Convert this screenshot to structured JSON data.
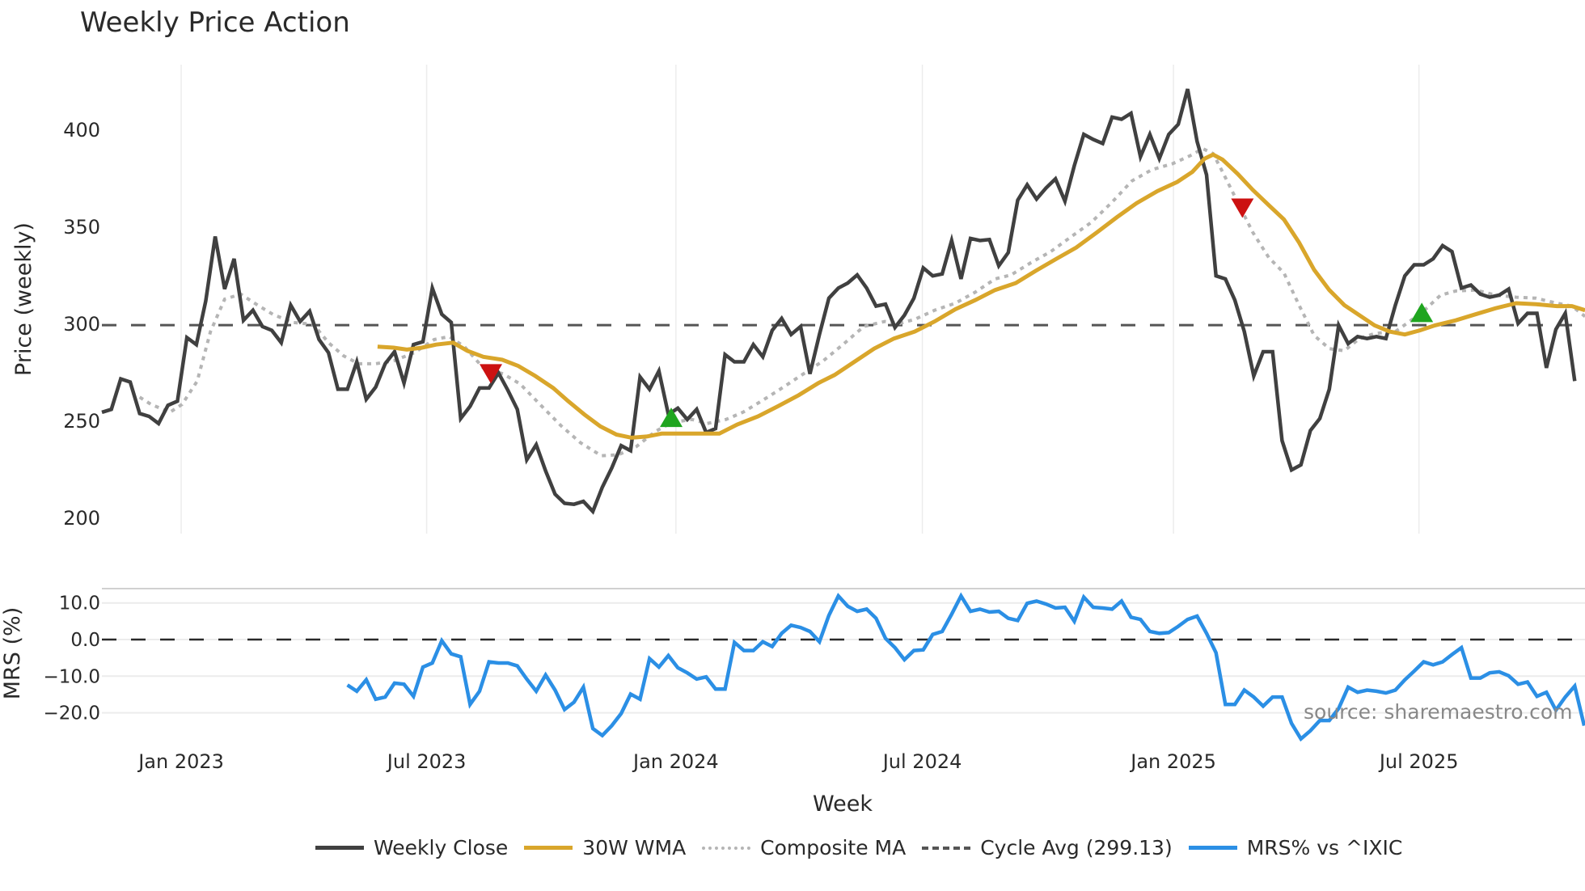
{
  "chart_data": {
    "type": "line",
    "title": "Weekly Price Action",
    "xlabel": "Week",
    "source": "source: sharemaestro.com",
    "x_ticks": [
      {
        "label": "Jan 2023",
        "week": 8.4
      },
      {
        "label": "Jul 2023",
        "week": 34.4
      },
      {
        "label": "Jan 2024",
        "week": 60.8
      },
      {
        "label": "Jul 2024",
        "week": 86.9
      },
      {
        "label": "Jan 2025",
        "week": 113.5
      },
      {
        "label": "Jul 2025",
        "week": 139.5
      }
    ],
    "panels": {
      "price": {
        "ylabel": "Price (weekly)",
        "y_ticks": [
          200,
          250,
          300,
          350,
          400
        ],
        "ylim": [
          188,
          435
        ],
        "cycle_avg": 299.13
      },
      "mrs": {
        "ylabel": "MRS (%)",
        "y_ticks": [
          "10.0",
          "0.0",
          "−10.0",
          "−20.0"
        ],
        "y_tick_values": [
          10,
          0,
          -10,
          -20
        ],
        "ylim": [
          -30,
          14
        ]
      }
    },
    "legend": [
      {
        "name": "Weekly Close",
        "color": "#404040",
        "style": "solid"
      },
      {
        "name": "30W WMA",
        "color": "#d9a62b",
        "style": "solid"
      },
      {
        "name": "Composite MA",
        "color": "#b5b5b5",
        "style": "dotted"
      },
      {
        "name": "Cycle Avg (299.13)",
        "color": "#555555",
        "style": "dashed"
      },
      {
        "name": "MRS% vs ^IXIC",
        "color": "#2b8fe5",
        "style": "solid"
      }
    ],
    "series": [
      {
        "name": "Weekly Close",
        "start_week": 0,
        "values": [
          254.2,
          255.7,
          271.4,
          269.8,
          253.6,
          252.1,
          248.4,
          257.8,
          259.9,
          292.7,
          289.1,
          311.5,
          344.8,
          317.7,
          333.3,
          301.6,
          306.8,
          298.4,
          296.4,
          290.1,
          309.4,
          301.0,
          306.3,
          291.7,
          284.9,
          266.1,
          266.1,
          280.2,
          260.9,
          267.2,
          279.2,
          285.4,
          269.3,
          289.1,
          290.6,
          318.2,
          304.7,
          300.5,
          251.0,
          257.3,
          266.7,
          266.7,
          274.5,
          265.6,
          255.7,
          229.7,
          237.5,
          224.0,
          212.0,
          207.3,
          206.8,
          208.3,
          203.1,
          215.6,
          225.5,
          237.0,
          234.4,
          272.4,
          266.1,
          275.5,
          253.1,
          256.3,
          250.5,
          255.7,
          243.8,
          245.8,
          283.9,
          280.2,
          280.2,
          289.1,
          282.8,
          296.4,
          302.6,
          294.3,
          298.4,
          274.0,
          294.3,
          313.0,
          318.2,
          320.8,
          325.0,
          318.2,
          308.9,
          309.9,
          297.9,
          304.2,
          313.0,
          328.6,
          324.5,
          325.5,
          342.7,
          322.9,
          343.8,
          342.7,
          343.2,
          329.7,
          336.5,
          363.5,
          371.4,
          364.1,
          369.8,
          374.5,
          363.0,
          381.3,
          397.4,
          394.8,
          392.7,
          406.3,
          405.2,
          408.3,
          385.9,
          397.4,
          384.9,
          397.4,
          402.6,
          420.8,
          393.8,
          376.6,
          324.5,
          322.9,
          312.0,
          295.8,
          272.9,
          285.4,
          285.4,
          239.6,
          224.5,
          227.1,
          244.8,
          251.0,
          266.1,
          299.0,
          289.6,
          293.2,
          292.2,
          293.2,
          292.2,
          309.4,
          324.5,
          330.2,
          330.2,
          333.3,
          340.1,
          337.0,
          318.2,
          319.8,
          315.1,
          313.5,
          314.6,
          317.7,
          300.0,
          305.2,
          305.2,
          277.1,
          296.9,
          305.2,
          270.3
        ]
      },
      {
        "name": "30W WMA",
        "points": [
          [
            29.2,
            288.0
          ],
          [
            30.9,
            287.5
          ],
          [
            32.3,
            286.5
          ],
          [
            33.9,
            287.5
          ],
          [
            35.4,
            289.1
          ],
          [
            37.2,
            290.1
          ],
          [
            38.7,
            285.9
          ],
          [
            40.4,
            282.8
          ],
          [
            42.4,
            281.3
          ],
          [
            44.1,
            278.1
          ],
          [
            45.9,
            272.9
          ],
          [
            47.8,
            266.7
          ],
          [
            49.4,
            259.9
          ],
          [
            51.1,
            253.1
          ],
          [
            52.8,
            246.9
          ],
          [
            54.5,
            242.7
          ],
          [
            56.1,
            241.1
          ],
          [
            57.7,
            241.7
          ],
          [
            59.3,
            243.2
          ],
          [
            61.5,
            243.2
          ],
          [
            63.1,
            243.2
          ],
          [
            65.4,
            243.2
          ],
          [
            67.3,
            247.9
          ],
          [
            69.5,
            252.1
          ],
          [
            71.6,
            257.3
          ],
          [
            73.8,
            263.0
          ],
          [
            75.9,
            269.3
          ],
          [
            77.6,
            273.4
          ],
          [
            79.7,
            280.2
          ],
          [
            81.8,
            287.0
          ],
          [
            83.9,
            292.2
          ],
          [
            86.1,
            295.8
          ],
          [
            88.2,
            301.0
          ],
          [
            90.4,
            307.3
          ],
          [
            92.5,
            312.0
          ],
          [
            94.6,
            317.2
          ],
          [
            96.8,
            320.8
          ],
          [
            98.9,
            327.1
          ],
          [
            101.1,
            333.3
          ],
          [
            103.2,
            339.1
          ],
          [
            105.4,
            346.9
          ],
          [
            107.5,
            354.7
          ],
          [
            109.6,
            362.0
          ],
          [
            111.8,
            368.2
          ],
          [
            113.9,
            372.9
          ],
          [
            115.5,
            378.1
          ],
          [
            116.8,
            384.9
          ],
          [
            117.7,
            387.0
          ],
          [
            118.7,
            384.4
          ],
          [
            120.3,
            377.1
          ],
          [
            121.9,
            368.8
          ],
          [
            123.6,
            360.9
          ],
          [
            125.2,
            353.6
          ],
          [
            126.8,
            341.7
          ],
          [
            128.4,
            327.6
          ],
          [
            130.0,
            317.2
          ],
          [
            131.6,
            309.4
          ],
          [
            133.2,
            304.2
          ],
          [
            134.8,
            299.0
          ],
          [
            136.4,
            295.8
          ],
          [
            138.0,
            294.3
          ],
          [
            139.6,
            296.4
          ],
          [
            141.2,
            299.0
          ],
          [
            143.4,
            301.6
          ],
          [
            145.5,
            304.7
          ],
          [
            147.6,
            307.8
          ],
          [
            149.8,
            310.4
          ],
          [
            151.9,
            309.9
          ],
          [
            154.1,
            308.9
          ],
          [
            155.7,
            308.9
          ],
          [
            157.1,
            306.8
          ]
        ]
      },
      {
        "name": "Composite MA",
        "points": [
          [
            4.0,
            262.0
          ],
          [
            5.2,
            258.3
          ],
          [
            7.2,
            254.2
          ],
          [
            8.5,
            258.3
          ],
          [
            10.1,
            270.3
          ],
          [
            11.5,
            295.8
          ],
          [
            13.0,
            312.5
          ],
          [
            14.7,
            315.1
          ],
          [
            16.5,
            309.4
          ],
          [
            18.1,
            304.7
          ],
          [
            20.2,
            300.5
          ],
          [
            22.4,
            299.5
          ],
          [
            24.0,
            290.1
          ],
          [
            25.6,
            283.3
          ],
          [
            27.2,
            279.2
          ],
          [
            29.0,
            279.2
          ],
          [
            30.9,
            280.7
          ],
          [
            33.1,
            284.9
          ],
          [
            35.2,
            291.7
          ],
          [
            36.8,
            293.2
          ],
          [
            38.4,
            288.0
          ],
          [
            40.4,
            277.1
          ],
          [
            42.5,
            274.0
          ],
          [
            44.3,
            268.8
          ],
          [
            46.5,
            257.8
          ],
          [
            48.6,
            247.4
          ],
          [
            50.7,
            238.5
          ],
          [
            52.9,
            231.8
          ],
          [
            54.7,
            232.3
          ],
          [
            56.6,
            236.5
          ],
          [
            58.6,
            244.3
          ],
          [
            60.4,
            249.0
          ],
          [
            62.5,
            250.5
          ],
          [
            64.1,
            248.4
          ],
          [
            66.1,
            250.5
          ],
          [
            67.9,
            254.2
          ],
          [
            70.0,
            260.4
          ],
          [
            72.2,
            267.2
          ],
          [
            74.3,
            274.0
          ],
          [
            76.4,
            280.7
          ],
          [
            78.6,
            289.6
          ],
          [
            80.7,
            298.4
          ],
          [
            82.9,
            301.0
          ],
          [
            84.5,
            300.0
          ],
          [
            86.1,
            302.1
          ],
          [
            88.2,
            306.8
          ],
          [
            90.4,
            310.4
          ],
          [
            92.5,
            316.1
          ],
          [
            94.6,
            322.9
          ],
          [
            96.3,
            325.0
          ],
          [
            98.4,
            331.3
          ],
          [
            100.5,
            337.0
          ],
          [
            102.7,
            344.8
          ],
          [
            104.8,
            352.1
          ],
          [
            107.0,
            362.5
          ],
          [
            109.1,
            373.4
          ],
          [
            111.2,
            379.2
          ],
          [
            113.4,
            382.3
          ],
          [
            115.3,
            386.5
          ],
          [
            116.6,
            390.1
          ],
          [
            117.7,
            387.5
          ],
          [
            118.7,
            378.1
          ],
          [
            120.3,
            362.5
          ],
          [
            121.9,
            346.9
          ],
          [
            123.6,
            333.9
          ],
          [
            125.2,
            326.0
          ],
          [
            126.8,
            309.4
          ],
          [
            128.4,
            293.8
          ],
          [
            130.0,
            287.0
          ],
          [
            131.6,
            285.9
          ],
          [
            133.2,
            292.2
          ],
          [
            134.8,
            294.8
          ],
          [
            137.0,
            295.8
          ],
          [
            138.5,
            301.0
          ],
          [
            140.2,
            307.3
          ],
          [
            141.8,
            314.6
          ],
          [
            143.4,
            316.7
          ],
          [
            145.5,
            317.2
          ],
          [
            147.6,
            314.6
          ],
          [
            149.8,
            313.5
          ],
          [
            151.9,
            313.0
          ],
          [
            154.1,
            310.4
          ],
          [
            155.7,
            308.9
          ],
          [
            157.1,
            303.6
          ]
        ]
      },
      {
        "name": "MRS% vs ^IXIC",
        "panel": "mrs",
        "start_week": 26,
        "values": [
          -12.4,
          -14.1,
          -11.0,
          -16.3,
          -15.7,
          -11.9,
          -12.2,
          -15.5,
          -7.5,
          -6.4,
          -0.3,
          -3.9,
          -4.7,
          -17.7,
          -14.1,
          -6.1,
          -6.4,
          -6.4,
          -7.2,
          -10.8,
          -14.1,
          -9.7,
          -13.8,
          -19.1,
          -17.1,
          -13.0,
          -24.3,
          -26.2,
          -23.5,
          -20.2,
          -14.9,
          -16.3,
          -5.2,
          -7.5,
          -4.4,
          -7.7,
          -9.1,
          -10.8,
          -10.2,
          -13.5,
          -13.5,
          -0.8,
          -3.0,
          -3.0,
          -0.6,
          -1.9,
          1.7,
          3.9,
          3.3,
          2.2,
          -0.6,
          6.6,
          11.9,
          9.1,
          7.7,
          8.3,
          5.8,
          0.3,
          -2.2,
          -5.5,
          -3.0,
          -2.8,
          1.4,
          2.2,
          6.9,
          11.9,
          7.7,
          8.3,
          7.5,
          7.7,
          5.8,
          5.2,
          9.9,
          10.5,
          9.7,
          8.6,
          8.8,
          5.0,
          11.6,
          8.8,
          8.6,
          8.3,
          10.5,
          6.1,
          5.5,
          2.2,
          1.7,
          1.9,
          3.6,
          5.5,
          6.4,
          1.7,
          -3.6,
          -17.7,
          -17.7,
          -13.8,
          -15.7,
          -18.2,
          -15.7,
          -15.7,
          -22.9,
          -27.1,
          -24.9,
          -22.1,
          -22.1,
          -18.8,
          -13.0,
          -14.4,
          -13.8,
          -14.1,
          -14.6,
          -13.8,
          -11.0,
          -8.6,
          -6.1,
          -6.9,
          -6.1,
          -4.1,
          -2.2,
          -10.5,
          -10.5,
          -9.1,
          -8.8,
          -9.9,
          -12.2,
          -11.6,
          -15.5,
          -14.4,
          -19.3,
          -15.7,
          -12.7,
          -23.5
        ]
      }
    ],
    "markers": [
      {
        "type": "sell",
        "shape": "triangle-down",
        "color": "#cc1111",
        "week": 41.2,
        "price": 274.0
      },
      {
        "type": "buy",
        "shape": "triangle-up",
        "color": "#1fa51f",
        "week": 60.3,
        "price": 251.6
      },
      {
        "type": "sell",
        "shape": "triangle-down",
        "color": "#cc1111",
        "week": 120.8,
        "price": 359.4
      },
      {
        "type": "buy",
        "shape": "triangle-up",
        "color": "#1fa51f",
        "week": 139.8,
        "price": 305.7
      }
    ]
  }
}
